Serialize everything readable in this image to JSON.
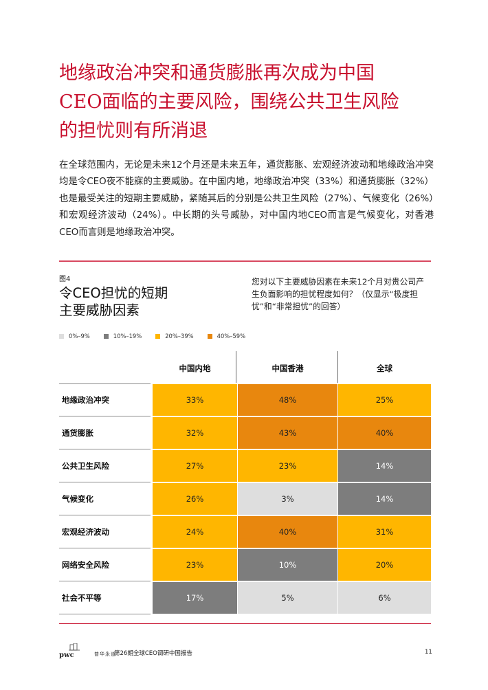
{
  "headline": [
    "地缘政治冲突和通货膨胀再次成为中国",
    "CEO面临的主要风险，围绕公共卫生风险",
    "的担忧则有所消退"
  ],
  "intro": "在全球范围内，无论是未来12个月还是未来五年，通货膨胀、宏观经济波动和地缘政治冲突均是令CEO夜不能寐的主要威胁。在中国内地，地缘政治冲突（33%）和通货膨胀（32%）也是最受关注的短期主要威胁，紧随其后的分别是公共卫生风险（27%）、气候变化（26%）和宏观经济波动（24%）。中长期的头号威胁，对中国内地CEO而言是气候变化，对香港CEO而言则是地缘政治冲突。",
  "figure": {
    "label": "图4",
    "title": [
      "令CEO担忧的短期",
      "主要威胁因素"
    ],
    "question": "您对以下主要威胁因素在未来12个月对贵公司产生负面影响的担忧程度如何？（仅显示“极度担忧”和“非常担忧”的回答）"
  },
  "legend": [
    {
      "label": "0%–9%",
      "color": "#dedede"
    },
    {
      "label": "10%–19%",
      "color": "#7d7d7d"
    },
    {
      "label": "20%–39%",
      "color": "#ffb600"
    },
    {
      "label": "40%–59%",
      "color": "#e8870e"
    }
  ],
  "table": {
    "columns": [
      "中国内地",
      "中国香港",
      "全球"
    ],
    "rows": [
      {
        "label": "地缘政治冲突",
        "values": [
          33,
          48,
          25
        ]
      },
      {
        "label": "通货膨胀",
        "values": [
          32,
          43,
          40
        ]
      },
      {
        "label": "公共卫生风险",
        "values": [
          27,
          23,
          14
        ]
      },
      {
        "label": "气候变化",
        "values": [
          26,
          3,
          14
        ]
      },
      {
        "label": "宏观经济波动",
        "values": [
          24,
          40,
          31
        ]
      },
      {
        "label": "网络安全风险",
        "values": [
          23,
          10,
          20
        ]
      },
      {
        "label": "社会不平等",
        "values": [
          17,
          5,
          6
        ]
      }
    ]
  },
  "footer": {
    "logo": "pwc",
    "brand": "普华永道",
    "text": "第26期全球CEO调研中国报告",
    "page": "11"
  }
}
